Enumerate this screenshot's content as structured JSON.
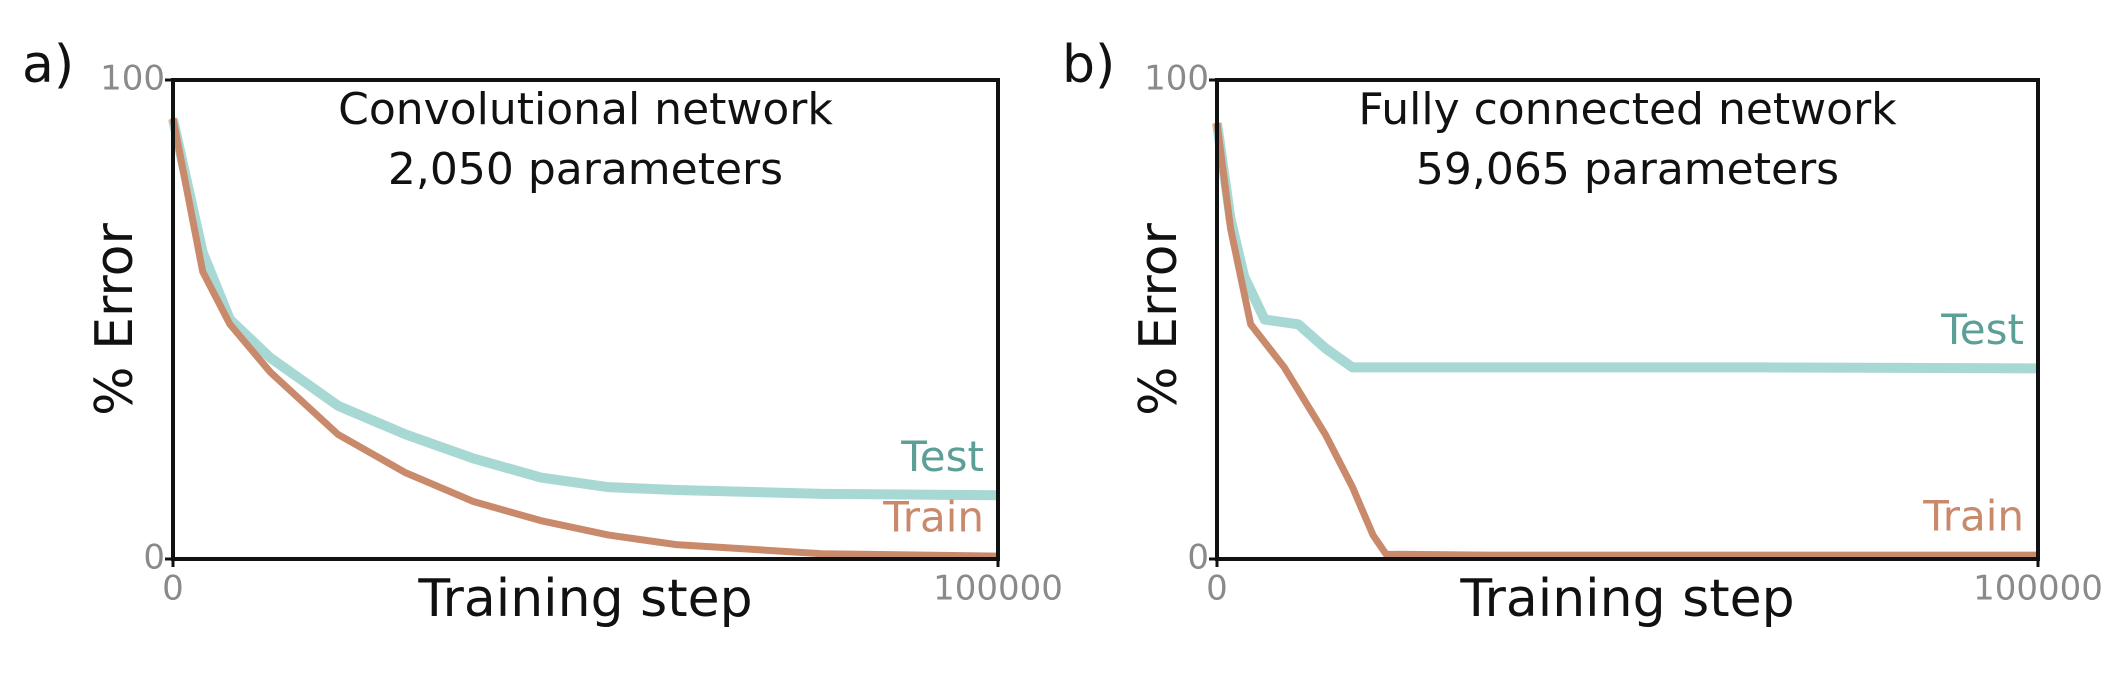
{
  "chart_data": [
    {
      "type": "line",
      "panel_label": "a)",
      "title": "Convolutional network",
      "subtitle": "2,050 parameters",
      "xlabel": "Training step",
      "ylabel": "% Error",
      "xlim": [
        0,
        100000
      ],
      "ylim": [
        0,
        100
      ],
      "xticks": [
        0,
        100000
      ],
      "yticks": [
        0,
        100
      ],
      "series": [
        {
          "name": "Test",
          "color": "#a8d8d3",
          "x": [
            0,
            3600,
            6900,
            11800,
            20000,
            28200,
            36400,
            44600,
            52800,
            61000,
            78700,
            100000
          ],
          "values": [
            91.8,
            64,
            50,
            42,
            32,
            26,
            21,
            17,
            15,
            14.4,
            13.6,
            13.3
          ]
        },
        {
          "name": "Train",
          "color": "#c98a6c",
          "x": [
            0,
            3600,
            6900,
            11800,
            20000,
            28200,
            36400,
            44600,
            52800,
            61000,
            78700,
            100000
          ],
          "values": [
            92,
            60,
            49,
            39,
            26,
            18,
            12,
            8,
            5,
            3,
            1.1,
            0.6
          ]
        }
      ]
    },
    {
      "type": "line",
      "panel_label": "b)",
      "title": "Fully connected network",
      "subtitle": "59,065 parameters",
      "xlabel": "Training step",
      "ylabel": "% Error",
      "xlim": [
        0,
        100000
      ],
      "ylim": [
        0,
        100
      ],
      "xticks": [
        0,
        100000
      ],
      "yticks": [
        0,
        100
      ],
      "series": [
        {
          "name": "Test",
          "color": "#a8d8d3",
          "x": [
            0,
            1650,
            3300,
            5800,
            9900,
            13200,
            16500,
            19800,
            33000,
            66000,
            100000
          ],
          "values": [
            91,
            71,
            59,
            50,
            49,
            44,
            40,
            40,
            40,
            40,
            39.8
          ]
        },
        {
          "name": "Train",
          "color": "#c98a6c",
          "x": [
            0,
            1650,
            4100,
            8200,
            13200,
            16500,
            19000,
            20600,
            33000,
            100000
          ],
          "values": [
            91,
            69,
            49,
            40,
            26,
            15,
            5,
            1,
            0.8,
            0.8
          ]
        }
      ]
    }
  ]
}
